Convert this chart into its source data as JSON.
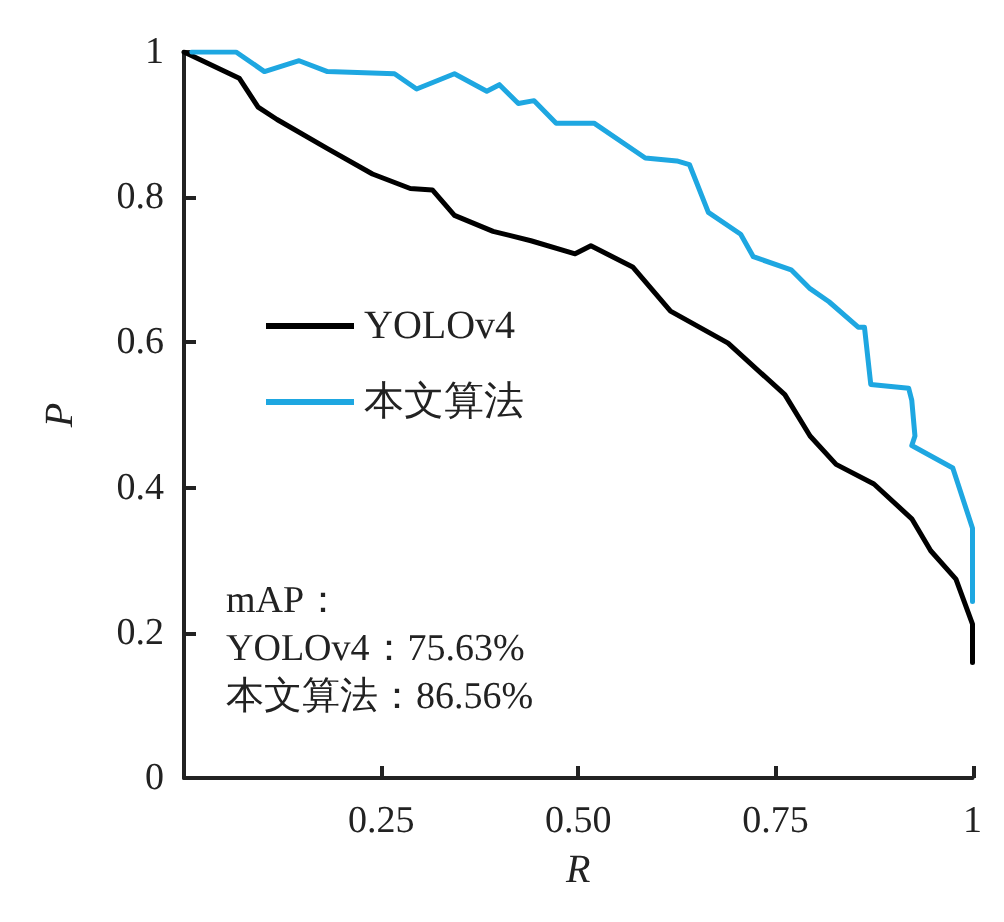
{
  "chart_data": {
    "type": "line",
    "xlabel": "R",
    "ylabel": "P",
    "xlim": [
      0,
      1
    ],
    "ylim": [
      0,
      1
    ],
    "xticks": [
      {
        "value": 0.25,
        "label": "0.25"
      },
      {
        "value": 0.5,
        "label": "0.50"
      },
      {
        "value": 0.75,
        "label": "0.75"
      },
      1
    ],
    "yticks": [
      0,
      0.2,
      0.4,
      0.6,
      0.8,
      1
    ],
    "grid": false,
    "legend": "left",
    "marker": "none",
    "line_style": "solid",
    "series": [
      {
        "name": "YOLOv4",
        "color": "#000000",
        "x": [
          0,
          0.07,
          0.094,
          0.118,
          0.182,
          0.239,
          0.287,
          0.315,
          0.343,
          0.392,
          0.44,
          0.496,
          0.516,
          0.569,
          0.617,
          0.69,
          0.762,
          0.794,
          0.827,
          0.875,
          0.923,
          0.947,
          0.979,
          1,
          1
        ],
        "values": [
          1,
          0.964,
          0.924,
          0.907,
          0.867,
          0.832,
          0.812,
          0.81,
          0.775,
          0.753,
          0.74,
          0.722,
          0.733,
          0.704,
          0.643,
          0.599,
          0.528,
          0.471,
          0.432,
          0.405,
          0.357,
          0.313,
          0.274,
          0.212,
          0.159
        ]
      },
      {
        "name": "本文算法",
        "color": "#1ea7e1",
        "x": [
          0.01,
          0.066,
          0.102,
          0.146,
          0.182,
          0.267,
          0.295,
          0.343,
          0.384,
          0.4,
          0.424,
          0.444,
          0.472,
          0.52,
          0.585,
          0.625,
          0.641,
          0.665,
          0.706,
          0.722,
          0.77,
          0.794,
          0.818,
          0.855,
          0.863,
          0.871,
          0.919,
          0.923,
          0.927,
          0.923,
          0.975,
          1,
          1
        ],
        "values": [
          1,
          1,
          0.973,
          0.988,
          0.973,
          0.97,
          0.949,
          0.97,
          0.946,
          0.955,
          0.929,
          0.933,
          0.902,
          0.902,
          0.854,
          0.85,
          0.845,
          0.779,
          0.749,
          0.718,
          0.7,
          0.674,
          0.656,
          0.621,
          0.621,
          0.542,
          0.537,
          0.52,
          0.471,
          0.458,
          0.427,
          0.344,
          0.243
        ]
      }
    ],
    "annotations": [
      "mAP：",
      "YOLOv4：75.63%",
      "本文算法：86.56%"
    ]
  }
}
